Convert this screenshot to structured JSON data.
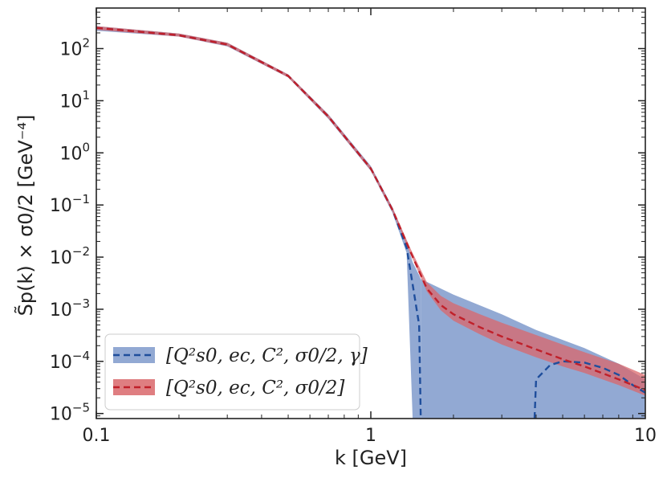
{
  "chart_data": {
    "type": "line",
    "title": "",
    "xlabel": "k [GeV]",
    "ylabel": "S̃p(k) × σ0/2 [GeV⁻⁴]",
    "xscale": "log",
    "yscale": "log",
    "xlim": [
      0.1,
      10
    ],
    "ylim": [
      8e-06,
      600
    ],
    "x_tick_labels": [
      {
        "value": 0.1,
        "label": "0.1"
      },
      {
        "value": 1,
        "label": "1"
      },
      {
        "value": 10,
        "label": "10"
      }
    ],
    "y_tick_labels": [
      {
        "exp": -5,
        "mantissa": "10",
        "sup": "−5"
      },
      {
        "exp": -4,
        "mantissa": "10",
        "sup": "−4"
      },
      {
        "exp": -3,
        "mantissa": "10",
        "sup": "−3"
      },
      {
        "exp": -2,
        "mantissa": "10",
        "sup": "−2"
      },
      {
        "exp": -1,
        "mantissa": "10",
        "sup": "−1"
      },
      {
        "exp": 0,
        "mantissa": "10",
        "sup": "0"
      },
      {
        "exp": 1,
        "mantissa": "10",
        "sup": "1"
      },
      {
        "exp": 2,
        "mantissa": "10",
        "sup": "2"
      }
    ],
    "grid": false,
    "legend_position": "lower-left",
    "series": [
      {
        "name": "[Q²s0, ec, C², σ0/2, γ]",
        "color": "#1f4e9c",
        "band_color": "#7f9acb",
        "style": "dashed",
        "x": [
          0.1,
          0.2,
          0.3,
          0.5,
          0.7,
          1.0,
          1.2,
          1.35,
          1.42,
          1.5,
          1.52
        ],
        "y": [
          250,
          180,
          120,
          30,
          5,
          0.5,
          0.08,
          0.015,
          0.003,
          0.0005,
          8e-06
        ],
        "band_lower": [
          220,
          170,
          110,
          28,
          4.5,
          0.45,
          0.07,
          0.012,
          8e-06,
          8e-06,
          8e-06
        ],
        "band_upper": [
          270,
          195,
          130,
          32,
          5.5,
          0.56,
          0.09,
          0.02,
          0.008,
          0.0045,
          0.0038
        ],
        "segment2_x": [
          3.95,
          4.0,
          4.5,
          5.0,
          6.0,
          7.0,
          8.0,
          9.0,
          10.0
        ],
        "segment2_y": [
          8e-06,
          4.5e-05,
          8.5e-05,
          0.0001,
          9.5e-05,
          7.5e-05,
          5.5e-05,
          3.5e-05,
          2.5e-05
        ],
        "band2_x": [
          1.52,
          2.0,
          3.0,
          4.0,
          6.0,
          8.0,
          10.0
        ],
        "band2_upper": [
          0.0038,
          0.0019,
          0.0008,
          0.0004,
          0.00018,
          9e-05,
          4.5e-05
        ],
        "band2_lower": [
          8e-06,
          8e-06,
          8e-06,
          8e-06,
          8e-06,
          8e-06,
          8e-06
        ]
      },
      {
        "name": "[Q²s0, ec, C², σ0/2]",
        "color": "#c0202a",
        "band_color": "#d9676b",
        "style": "dashed",
        "x": [
          0.1,
          0.2,
          0.3,
          0.5,
          0.7,
          1.0,
          1.2,
          1.4,
          1.6,
          1.8,
          2.0,
          2.5,
          3.0,
          4.0,
          5.0,
          6.0,
          8.0,
          10.0
        ],
        "y": [
          250,
          180,
          120,
          30,
          5,
          0.5,
          0.08,
          0.012,
          0.0025,
          0.0012,
          0.0008,
          0.00045,
          0.0003,
          0.00017,
          0.00011,
          8e-05,
          4.5e-05,
          2.8e-05
        ],
        "band_lower": [
          230,
          170,
          112,
          28,
          4.6,
          0.46,
          0.073,
          0.011,
          0.0022,
          0.00095,
          0.0006,
          0.00033,
          0.00021,
          0.00012,
          8e-05,
          6e-05,
          3.5e-05,
          2.2e-05
        ],
        "band_upper": [
          270,
          195,
          130,
          32,
          5.4,
          0.54,
          0.088,
          0.014,
          0.0033,
          0.0018,
          0.0013,
          0.0008,
          0.00055,
          0.00032,
          0.00021,
          0.00015,
          9e-05,
          5.5e-05
        ]
      }
    ]
  }
}
